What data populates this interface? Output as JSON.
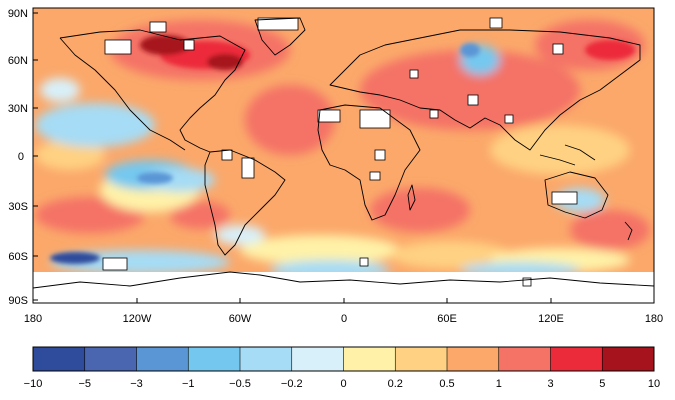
{
  "map": {
    "lat_labels": [
      "90N",
      "60N",
      "30N",
      "0",
      "30S",
      "60S",
      "90S"
    ],
    "lon_labels": [
      "180",
      "120W",
      "60W",
      "0",
      "60E",
      "120E",
      "180"
    ]
  },
  "colorbar": {
    "tick_labels": [
      "−10",
      "−5",
      "−3",
      "−1",
      "−0.5",
      "−0.2",
      "0",
      "0.2",
      "0.5",
      "1",
      "3",
      "5",
      "10"
    ],
    "colors": [
      "#2f4c9c",
      "#4a66b0",
      "#5a95d6",
      "#74c8ef",
      "#a6dcf5",
      "#d8f0f9",
      "#fff2a8",
      "#ffd182",
      "#fba86a",
      "#f47266",
      "#ec2b3a",
      "#a6131c"
    ]
  }
}
